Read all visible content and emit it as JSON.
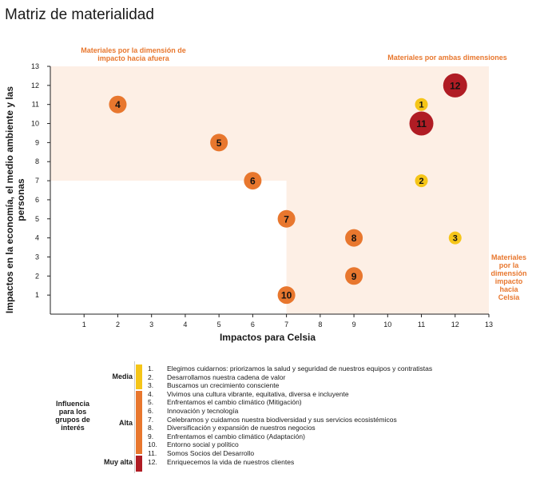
{
  "page_title": "Matriz de materialidad",
  "colors": {
    "media": "#f5c518",
    "alta": "#e8772e",
    "muy_alta": "#b01c24",
    "accent": "#e8772e",
    "shaded_zone": "#fdefe5"
  },
  "annotations": {
    "left": "Materiales por la dimensión de impacto hacia afuera",
    "top_right": "Materiales por ambas dimensiones",
    "right": "Materiales por la dimensión impacto hacia Celsia"
  },
  "chart_data": {
    "type": "scatter",
    "title": "Matriz de materialidad",
    "xlabel": "Impactos para Celsia",
    "ylabel": "Impactos en la economía, el medio ambiente y las personas",
    "xlim": [
      0,
      13
    ],
    "ylim": [
      0,
      13
    ],
    "xticks": [
      1,
      2,
      3,
      4,
      5,
      6,
      7,
      8,
      9,
      10,
      11,
      12,
      13
    ],
    "yticks": [
      1,
      2,
      3,
      4,
      5,
      6,
      7,
      8,
      9,
      10,
      11,
      12,
      13
    ],
    "grid": false,
    "shaded_regions": [
      {
        "name": "Materiales por la dimensión de impacto hacia afuera",
        "x": [
          0,
          13
        ],
        "y": [
          7,
          13
        ]
      },
      {
        "name": "Materiales por la dimensión impacto hacia Celsia",
        "x": [
          7,
          13
        ],
        "y": [
          0,
          13
        ]
      }
    ],
    "points": [
      {
        "label": "1",
        "x": 11,
        "y": 11,
        "level": "Media"
      },
      {
        "label": "2",
        "x": 11,
        "y": 7,
        "level": "Media"
      },
      {
        "label": "3",
        "x": 12,
        "y": 4,
        "level": "Media"
      },
      {
        "label": "4",
        "x": 2,
        "y": 11,
        "level": "Alta"
      },
      {
        "label": "5",
        "x": 5,
        "y": 9,
        "level": "Alta"
      },
      {
        "label": "6",
        "x": 6,
        "y": 7,
        "level": "Alta"
      },
      {
        "label": "7",
        "x": 7,
        "y": 5,
        "level": "Alta"
      },
      {
        "label": "8",
        "x": 9,
        "y": 4,
        "level": "Alta"
      },
      {
        "label": "9",
        "x": 9,
        "y": 2,
        "level": "Alta"
      },
      {
        "label": "10",
        "x": 7,
        "y": 1,
        "level": "Alta"
      },
      {
        "label": "11",
        "x": 11,
        "y": 10,
        "level": "Muy alta"
      },
      {
        "label": "12",
        "x": 12,
        "y": 12,
        "level": "Muy alta"
      }
    ]
  },
  "legend": {
    "title": "Influencia para los grupos de interés",
    "groups": [
      {
        "label": "Media",
        "color": "#f5c518"
      },
      {
        "label": "Alta",
        "color": "#e8772e"
      },
      {
        "label": "Muy alta",
        "color": "#b01c24"
      }
    ],
    "items": [
      {
        "num": "1.",
        "text": "Elegimos cuidarnos: priorizamos la salud y seguridad de nuestros equipos y contratistas"
      },
      {
        "num": "2.",
        "text": "Desarrollamos nuestra cadena de valor"
      },
      {
        "num": "3.",
        "text": "Buscamos un crecimiento consciente"
      },
      {
        "num": "4.",
        "text": "Vivimos una cultura vibrante, equitativa, diversa e incluyente"
      },
      {
        "num": "5.",
        "text": "Enfrentamos el cambio climático (Mitigación)"
      },
      {
        "num": "6.",
        "text": "Innovación y tecnología"
      },
      {
        "num": "7.",
        "text": "Celebramos y cuidamos nuestra biodiversidad y sus servicios ecosistémicos"
      },
      {
        "num": "8.",
        "text": "Diversificación y expansión de nuestros negocios"
      },
      {
        "num": "9.",
        "text": "Enfrentamos el cambio climático (Adaptación)"
      },
      {
        "num": "10.",
        "text": "Entorno social y político"
      },
      {
        "num": "11.",
        "text": "Somos Socios del Desarrollo"
      },
      {
        "num": "12.",
        "text": "Enriquecemos la vida de nuestros clientes"
      }
    ]
  }
}
